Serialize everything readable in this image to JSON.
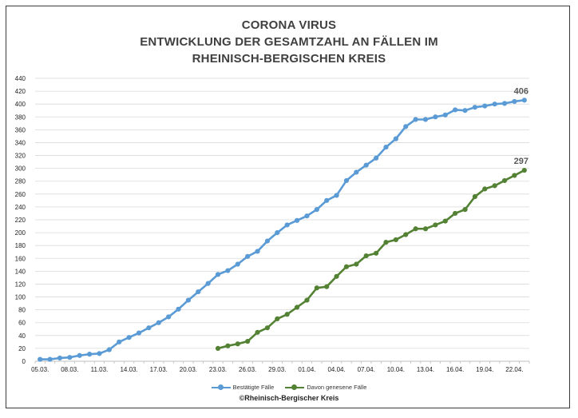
{
  "title": {
    "line1": "CORONA VIRUS",
    "line2": "ENTWICKLUNG DER GESAMTZAHL AN FÄLLEN IM",
    "line3": "RHEINISCH-BERGISCHEN KREIS"
  },
  "copyright": "©Rheinisch-Bergischer Kreis",
  "colors": {
    "confirmed": "#5B9BD5",
    "recovered": "#548235",
    "grid": "#d9d9d9",
    "axis": "#bfbfbf"
  },
  "chart_data": {
    "type": "line",
    "title": "CORONA VIRUS ENTWICKLUNG DER GESAMTZAHL AN FÄLLEN IM RHEINISCH-BERGISCHEN KREIS",
    "xlabel": "",
    "ylabel": "",
    "ylim": [
      0,
      440
    ],
    "yticks": [
      0,
      20,
      40,
      60,
      80,
      100,
      120,
      140,
      160,
      180,
      200,
      220,
      240,
      260,
      280,
      300,
      320,
      340,
      360,
      380,
      400,
      420,
      440
    ],
    "grid": true,
    "legend_position": "bottom",
    "x_tick_labels": [
      "05.03.",
      "08.03.",
      "11.03.",
      "14.03.",
      "17.03.",
      "20.03.",
      "23.03.",
      "26.03.",
      "29.03.",
      "01.04.",
      "04.04.",
      "07.04.",
      "10.04.",
      "13.04.",
      "16.04.",
      "19.04.",
      "22.04."
    ],
    "x": [
      "05.03.",
      "06.03.",
      "07.03.",
      "08.03.",
      "09.03.",
      "10.03.",
      "11.03.",
      "12.03.",
      "13.03.",
      "14.03.",
      "15.03.",
      "16.03.",
      "17.03.",
      "18.03.",
      "19.03.",
      "20.03.",
      "21.03.",
      "22.03.",
      "23.03.",
      "24.03.",
      "25.03.",
      "26.03.",
      "27.03.",
      "28.03.",
      "29.03.",
      "30.03.",
      "31.03.",
      "01.04.",
      "02.04.",
      "03.04.",
      "04.04.",
      "05.04.",
      "06.04.",
      "07.04.",
      "08.04.",
      "09.04.",
      "10.04.",
      "11.04.",
      "12.04.",
      "13.04.",
      "14.04.",
      "15.04.",
      "16.04.",
      "17.04.",
      "18.04.",
      "19.04.",
      "20.04.",
      "21.04.",
      "22.04.",
      "23.04."
    ],
    "series": [
      {
        "name": "Bestätigte Fälle",
        "values": [
          3,
          3,
          5,
          6,
          9,
          11,
          12,
          18,
          30,
          37,
          44,
          52,
          60,
          69,
          81,
          95,
          108,
          121,
          135,
          141,
          151,
          163,
          171,
          187,
          200,
          212,
          219,
          226,
          236,
          250,
          258,
          281,
          294,
          305,
          316,
          333,
          346,
          365,
          376,
          376,
          380,
          383,
          391,
          390,
          395,
          397,
          400,
          401,
          404,
          406
        ],
        "end_label": "406"
      },
      {
        "name": "Davon genesene Fälle",
        "values": [
          null,
          null,
          null,
          null,
          null,
          null,
          null,
          null,
          null,
          null,
          null,
          null,
          null,
          null,
          null,
          null,
          null,
          null,
          20,
          24,
          27,
          31,
          45,
          52,
          66,
          73,
          84,
          95,
          114,
          116,
          132,
          147,
          151,
          164,
          168,
          185,
          189,
          197,
          206,
          206,
          212,
          218,
          230,
          236,
          256,
          268,
          273,
          281,
          289,
          297
        ],
        "end_label": "297"
      }
    ]
  }
}
